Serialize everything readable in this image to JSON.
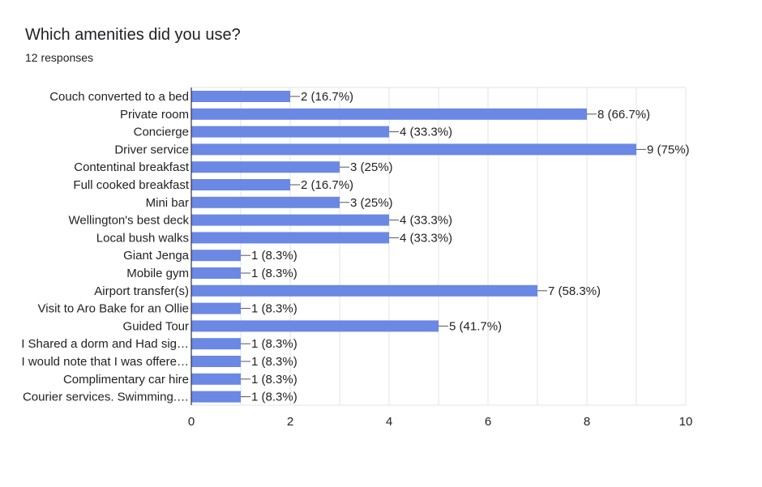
{
  "title": "Which amenities did you use?",
  "responses": "12 responses",
  "chart_data": {
    "type": "bar",
    "orientation": "horizontal",
    "categories": [
      "Couch converted to a bed",
      "Private room",
      "Concierge",
      "Driver service",
      "Contentinal breakfast",
      "Full cooked breakfast",
      "Mini bar",
      "Wellington's best deck",
      "Local bush walks",
      "Giant Jenga",
      "Mobile gym",
      "Airport transfer(s)",
      "Visit to Aro Bake for an Ollie",
      "Guided Tour",
      "I Shared a dorm and Had sig…",
      "I would note that I was offere…",
      "Complimentary car hire",
      "Courier services. Swimming.…"
    ],
    "values": [
      2,
      8,
      4,
      9,
      3,
      2,
      3,
      4,
      4,
      1,
      1,
      7,
      1,
      5,
      1,
      1,
      1,
      1
    ],
    "value_labels": [
      "2 (16.7%)",
      "8 (66.7%)",
      "4 (33.3%)",
      "9 (75%)",
      "3 (25%)",
      "2 (16.7%)",
      "3 (25%)",
      "4 (33.3%)",
      "4 (33.3%)",
      "1 (8.3%)",
      "1 (8.3%)",
      "7 (58.3%)",
      "1 (8.3%)",
      "5 (41.7%)",
      "1 (8.3%)",
      "1 (8.3%)",
      "1 (8.3%)",
      "1 (8.3%)"
    ],
    "xlim": [
      0,
      10
    ],
    "xticks": [
      "0",
      "2",
      "4",
      "6",
      "8",
      "10"
    ],
    "grid": true,
    "bar_color": "#6b88e4",
    "grid_color": "#e3e3e3",
    "axis_color": "#333333"
  }
}
